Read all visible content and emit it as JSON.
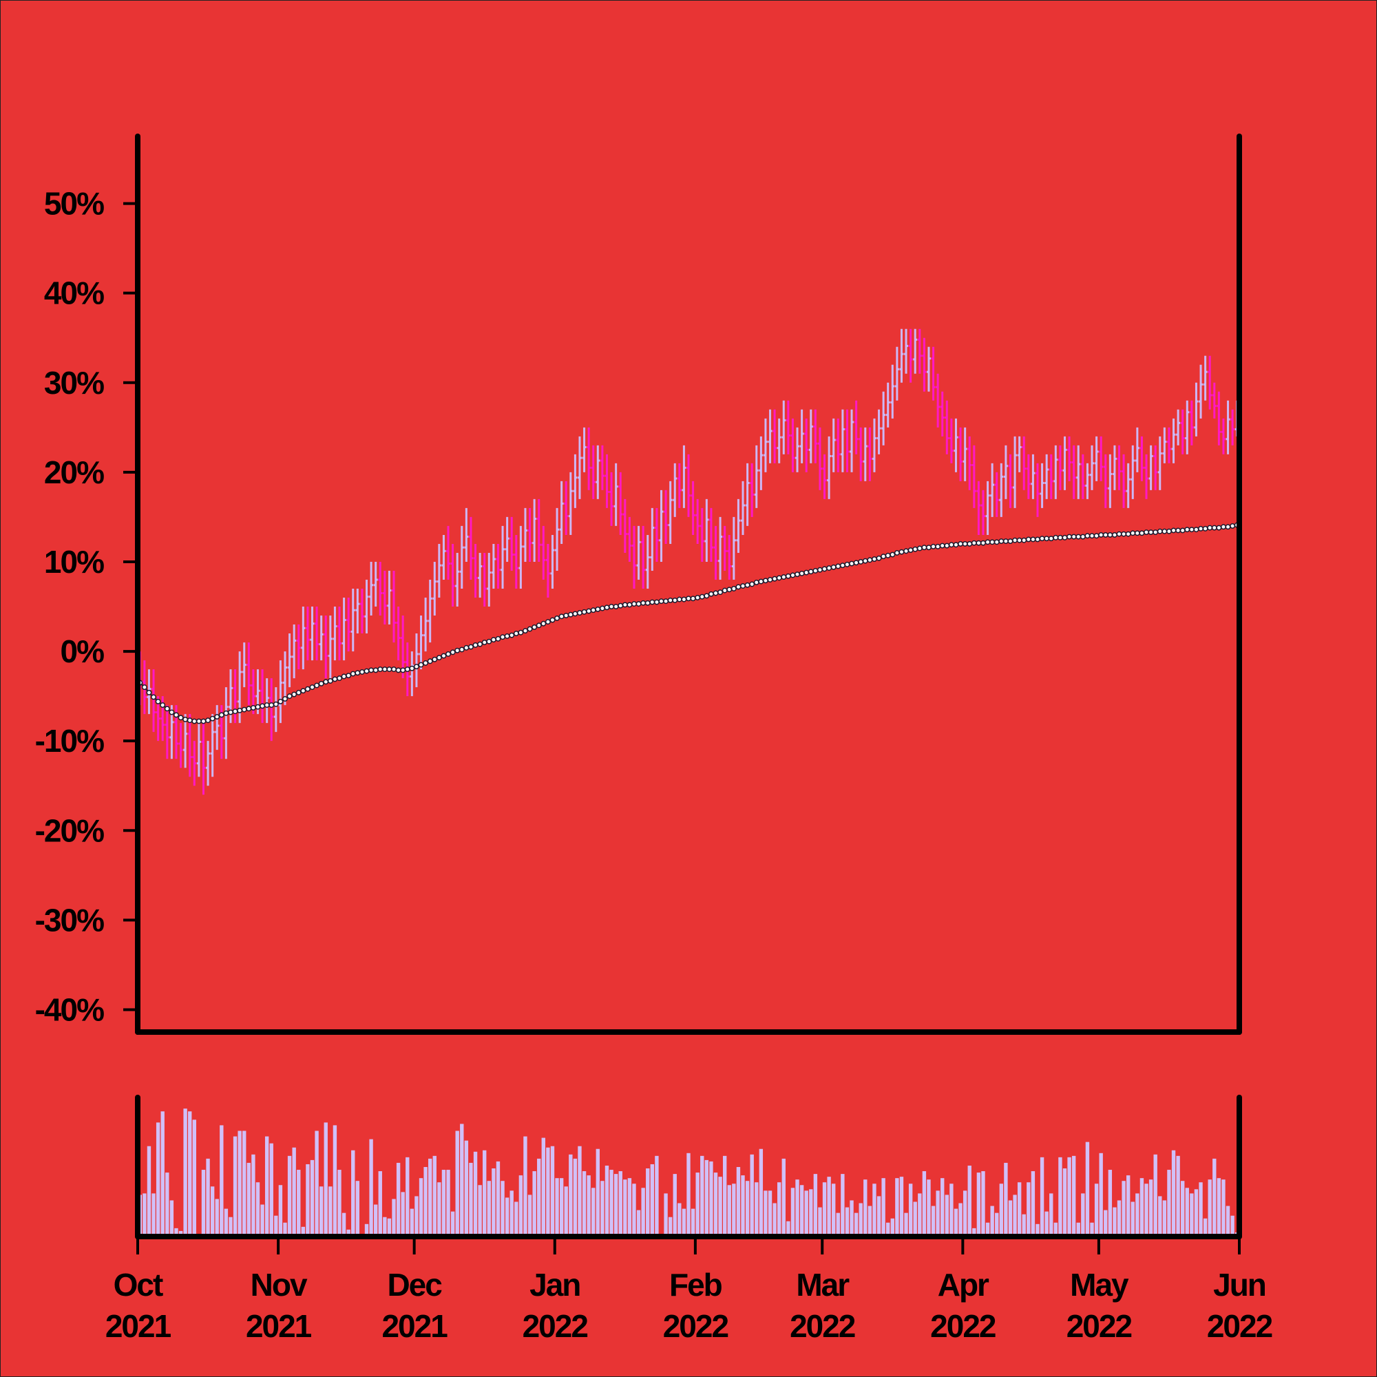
{
  "chart_data": {
    "type": "ohlc",
    "background": "#e83434",
    "up_color": "#cdb8f5",
    "down_color": "#ff19c4",
    "xlim": [
      0,
      243
    ],
    "xticks": [
      {
        "value": 0,
        "label": [
          "Oct",
          "2021"
        ]
      },
      {
        "value": 31,
        "label": [
          "Nov",
          "2021"
        ]
      },
      {
        "value": 61,
        "label": [
          "Dec",
          "2021"
        ]
      },
      {
        "value": 92,
        "label": [
          "Jan",
          "2022"
        ]
      },
      {
        "value": 123,
        "label": [
          "Feb",
          "2022"
        ]
      },
      {
        "value": 151,
        "label": [
          "Mar",
          "2022"
        ]
      },
      {
        "value": 182,
        "label": [
          "Apr",
          "2022"
        ]
      },
      {
        "value": 212,
        "label": [
          "May",
          "2022"
        ]
      },
      {
        "value": 243,
        "label": [
          "Jun",
          "2022"
        ]
      }
    ],
    "ylim": [
      -42.5,
      57.5
    ],
    "yticks": [
      {
        "value": -40,
        "label": "-40%"
      },
      {
        "value": -30,
        "label": "-30%"
      },
      {
        "value": -20,
        "label": "-20%"
      },
      {
        "value": -10,
        "label": "-10%"
      },
      {
        "value": 0,
        "label": "0%"
      },
      {
        "value": 10,
        "label": "10%"
      },
      {
        "value": 20,
        "label": "20%"
      },
      {
        "value": 30,
        "label": "30%"
      },
      {
        "value": 40,
        "label": "40%"
      },
      {
        "value": 50,
        "label": "50%"
      }
    ],
    "close": [
      -3.4,
      -5.1,
      -4.2,
      -6.8,
      -7.5,
      -8.2,
      -9.6,
      -7.9,
      -10.3,
      -11.0,
      -9.2,
      -11.8,
      -12.5,
      -10.1,
      -13.0,
      -11.4,
      -9.0,
      -8.3,
      -9.7,
      -6.2,
      -4.1,
      -5.6,
      -2.3,
      -1.5,
      -3.8,
      -5.0,
      -4.4,
      -6.1,
      -5.2,
      -7.3,
      -6.0,
      -3.5,
      -1.8,
      -0.6,
      1.2,
      0.4,
      2.6,
      1.3,
      3.1,
      0.8,
      1.9,
      -0.5,
      1.4,
      2.8,
      0.9,
      3.5,
      2.2,
      4.6,
      5.3,
      3.9,
      6.1,
      7.4,
      8.0,
      6.5,
      5.1,
      6.8,
      3.2,
      1.5,
      -1.2,
      -2.8,
      -1.6,
      -0.3,
      1.8,
      3.4,
      5.9,
      7.8,
      9.6,
      11.2,
      9.8,
      7.3,
      8.9,
      11.6,
      12.8,
      10.4,
      8.2,
      9.5,
      7.0,
      8.8,
      10.3,
      9.1,
      11.4,
      12.6,
      10.8,
      9.3,
      11.7,
      13.5,
      12.1,
      14.8,
      11.9,
      10.2,
      8.7,
      11.3,
      13.6,
      16.5,
      15.1,
      17.9,
      19.4,
      21.6,
      22.8,
      20.5,
      18.9,
      21.3,
      19.6,
      17.8,
      16.2,
      18.4,
      15.3,
      13.1,
      11.8,
      9.6,
      12.2,
      9.1,
      10.5,
      13.8,
      12.4,
      15.6,
      14.1,
      16.9,
      19.3,
      18.0,
      20.5,
      17.4,
      15.2,
      14.0,
      12.3,
      14.7,
      11.6,
      10.1,
      12.8,
      11.2,
      9.5,
      12.4,
      14.6,
      16.3,
      18.8,
      17.5,
      20.2,
      21.9,
      23.4,
      24.6,
      22.7,
      23.9,
      25.8,
      24.1,
      21.6,
      22.9,
      24.3,
      22.5,
      25.1,
      23.2,
      20.4,
      19.1,
      21.8,
      23.6,
      22.0,
      24.8,
      22.3,
      25.6,
      23.7,
      21.2,
      22.9,
      21.5,
      23.8,
      24.9,
      26.4,
      27.8,
      29.6,
      31.5,
      33.2,
      34.1,
      32.6,
      34.8,
      33.0,
      31.2,
      32.7,
      29.5,
      27.3,
      26.1,
      23.8,
      22.4,
      23.9,
      21.2,
      22.6,
      20.8,
      17.9,
      16.3,
      15.1,
      17.4,
      18.6,
      16.9,
      19.5,
      20.7,
      18.3,
      21.9,
      22.8,
      20.4,
      18.7,
      19.9,
      17.6,
      18.8,
      20.3,
      19.0,
      21.4,
      20.2,
      22.5,
      21.1,
      19.4,
      20.9,
      18.5,
      19.7,
      21.0,
      22.3,
      20.6,
      18.2,
      19.8,
      21.5,
      20.1,
      17.9,
      19.2,
      21.3,
      22.7,
      20.5,
      19.3,
      21.8,
      20.0,
      22.1,
      23.4,
      22.6,
      24.2,
      25.5,
      23.8,
      26.7,
      25.0,
      27.9,
      29.8,
      31.2,
      28.6,
      27.4,
      24.5,
      23.7,
      25.9,
      24.8,
      26.3
    ],
    "open": [
      -1.5,
      -3.4,
      -5.1,
      -4.2,
      -6.8,
      -7.5,
      -8.2,
      -9.6,
      -7.9,
      -10.3,
      -11.0,
      -9.2,
      -11.8,
      -12.5,
      -10.1,
      -13.0,
      -11.4,
      -9.0,
      -8.3,
      -9.7,
      -6.2,
      -4.1,
      -5.6,
      -2.3,
      -1.5,
      -3.8,
      -5.0,
      -4.4,
      -6.1,
      -5.2,
      -7.3,
      -6.0,
      -3.5,
      -1.8,
      -0.6,
      1.2,
      0.4,
      2.6,
      1.3,
      3.1,
      0.8,
      1.9,
      -0.5,
      1.4,
      2.8,
      0.9,
      3.5,
      2.2,
      4.6,
      5.3,
      3.9,
      6.1,
      7.4,
      8.0,
      6.5,
      5.1,
      6.8,
      3.2,
      1.5,
      -1.2,
      -2.8,
      -1.6,
      -0.3,
      1.8,
      3.4,
      5.9,
      7.8,
      9.6,
      11.2,
      9.8,
      7.3,
      8.9,
      11.6,
      12.8,
      10.4,
      8.2,
      9.5,
      7.0,
      8.8,
      10.3,
      9.1,
      11.4,
      12.6,
      10.8,
      9.3,
      11.7,
      13.5,
      12.1,
      14.8,
      11.9,
      10.2,
      8.7,
      11.3,
      13.6,
      16.5,
      15.1,
      17.9,
      19.4,
      21.6,
      22.8,
      20.5,
      18.9,
      21.3,
      19.6,
      17.8,
      16.2,
      18.4,
      15.3,
      13.1,
      11.8,
      9.6,
      12.2,
      9.1,
      10.5,
      13.8,
      12.4,
      15.6,
      14.1,
      16.9,
      19.3,
      18.0,
      20.5,
      17.4,
      15.2,
      14.0,
      12.3,
      14.7,
      11.6,
      10.1,
      12.8,
      11.2,
      9.5,
      12.4,
      14.6,
      16.3,
      18.8,
      17.5,
      20.2,
      21.9,
      23.4,
      24.6,
      22.7,
      23.9,
      25.8,
      24.1,
      21.6,
      22.9,
      24.3,
      22.5,
      25.1,
      23.2,
      20.4,
      19.1,
      21.8,
      23.6,
      22.0,
      24.8,
      22.3,
      25.6,
      23.7,
      21.2,
      22.9,
      21.5,
      23.8,
      24.9,
      26.4,
      27.8,
      29.6,
      31.5,
      33.2,
      34.1,
      32.6,
      34.8,
      33.0,
      31.2,
      32.7,
      29.5,
      27.3,
      26.1,
      23.8,
      22.4,
      23.9,
      21.2,
      22.6,
      20.8,
      17.9,
      16.3,
      15.1,
      17.4,
      18.6,
      16.9,
      19.5,
      20.7,
      18.3,
      21.9,
      22.8,
      20.4,
      18.7,
      19.9,
      17.6,
      18.8,
      20.3,
      19.0,
      21.4,
      20.2,
      22.5,
      21.1,
      19.4,
      20.9,
      18.5,
      19.7,
      21.0,
      22.3,
      20.6,
      18.2,
      19.8,
      21.5,
      20.1,
      17.9,
      19.2,
      21.3,
      22.7,
      20.5,
      19.3,
      21.8,
      20.0,
      22.1,
      23.4,
      22.6,
      24.2,
      25.5,
      23.8,
      26.7,
      25.0,
      27.9,
      29.8,
      31.2,
      28.6,
      27.4,
      24.5,
      23.7,
      25.9,
      24.8
    ],
    "high": [
      0,
      -1,
      -2,
      -2,
      -5,
      -5,
      -6,
      -6,
      -6,
      -8,
      -7,
      -7,
      -10,
      -8,
      -8,
      -10,
      -7,
      -6,
      -6,
      -4,
      -2,
      -2,
      0,
      1,
      1,
      -2,
      -2,
      -2,
      -3,
      -3,
      -4,
      -1,
      0,
      2,
      3,
      3,
      5,
      5,
      5,
      5,
      4,
      4,
      4,
      5,
      5,
      6,
      6,
      7,
      7,
      7,
      8,
      10,
      10,
      10,
      9,
      9,
      9,
      5,
      4,
      1,
      0,
      2,
      4,
      6,
      8,
      10,
      12,
      13,
      14,
      12,
      11,
      14,
      16,
      15,
      12,
      11,
      11,
      11,
      12,
      12,
      14,
      15,
      15,
      13,
      14,
      16,
      16,
      17,
      17,
      14,
      12,
      13,
      16,
      19,
      19,
      20,
      22,
      24,
      25,
      25,
      23,
      23,
      23,
      22,
      20,
      21,
      20,
      17,
      15,
      14,
      14,
      14,
      13,
      16,
      16,
      18,
      18,
      19,
      21,
      21,
      23,
      22,
      19,
      17,
      16,
      17,
      16,
      14,
      15,
      14,
      13,
      15,
      17,
      19,
      21,
      21,
      23,
      24,
      26,
      27,
      27,
      26,
      28,
      28,
      26,
      25,
      27,
      26,
      27,
      27,
      25,
      22,
      24,
      26,
      26,
      27,
      27,
      27,
      28,
      25,
      25,
      25,
      26,
      27,
      29,
      30,
      32,
      34,
      36,
      36,
      36,
      36,
      36,
      35,
      34,
      34,
      31,
      29,
      28,
      26,
      26,
      25,
      25,
      24,
      23,
      19,
      18,
      19,
      21,
      20,
      21,
      23,
      22,
      24,
      24,
      24,
      22,
      22,
      21,
      21,
      22,
      22,
      23,
      23,
      24,
      24,
      23,
      23,
      22,
      21,
      23,
      24,
      24,
      22,
      22,
      23,
      23,
      22,
      21,
      23,
      25,
      24,
      22,
      23,
      23,
      24,
      25,
      25,
      26,
      27,
      27,
      28,
      28,
      30,
      32,
      33,
      33,
      30,
      29,
      26,
      28,
      27,
      28
    ],
    "low": [
      -6,
      -7,
      -7,
      -9,
      -10,
      -10,
      -12,
      -12,
      -12,
      -13,
      -13,
      -14,
      -15,
      -14,
      -16,
      -15,
      -14,
      -11,
      -12,
      -12,
      -8,
      -8,
      -8,
      -4,
      -6,
      -7,
      -7,
      -8,
      -8,
      -10,
      -9,
      -8,
      -6,
      -4,
      -3,
      -2,
      -2,
      -1,
      -1,
      -1,
      -1,
      -3,
      -3,
      -1,
      -1,
      -1,
      0,
      0,
      2,
      2,
      2,
      4,
      5,
      4,
      3,
      3,
      1,
      -1,
      -3,
      -5,
      -5,
      -4,
      -2,
      0,
      1,
      4,
      6,
      8,
      8,
      5,
      5,
      7,
      10,
      8,
      6,
      6,
      5,
      5,
      7,
      7,
      7,
      10,
      9,
      7,
      7,
      10,
      10,
      10,
      10,
      8,
      6,
      7,
      9,
      12,
      13,
      13,
      16,
      17,
      20,
      18,
      17,
      17,
      18,
      16,
      14,
      14,
      13,
      11,
      10,
      7,
      8,
      7,
      7,
      9,
      10,
      10,
      12,
      12,
      15,
      16,
      16,
      15,
      13,
      12,
      10,
      10,
      10,
      8,
      8,
      9,
      8,
      8,
      11,
      13,
      14,
      15,
      16,
      18,
      20,
      21,
      21,
      21,
      22,
      22,
      20,
      20,
      21,
      20,
      21,
      21,
      18,
      17,
      17,
      20,
      20,
      20,
      20,
      20,
      22,
      19,
      19,
      19,
      20,
      22,
      23,
      25,
      26,
      28,
      30,
      31,
      30,
      31,
      31,
      29,
      29,
      28,
      25,
      24,
      22,
      21,
      20,
      19,
      19,
      18,
      16,
      13,
      13,
      13,
      15,
      15,
      15,
      17,
      16,
      16,
      20,
      18,
      17,
      17,
      15,
      16,
      17,
      17,
      17,
      18,
      18,
      19,
      17,
      17,
      17,
      17,
      18,
      19,
      19,
      16,
      16,
      18,
      18,
      16,
      16,
      17,
      20,
      19,
      17,
      18,
      18,
      18,
      21,
      21,
      21,
      23,
      22,
      22,
      23,
      24,
      26,
      28,
      27,
      26,
      23,
      22,
      22,
      23,
      24
    ],
    "moving_average": {
      "color": "#ffffff",
      "values": [
        -3.5,
        -4.0,
        -4.6,
        -5.1,
        -5.6,
        -6.0,
        -6.4,
        -6.8,
        -7.1,
        -7.4,
        -7.6,
        -7.7,
        -7.8,
        -7.8,
        -7.8,
        -7.7,
        -7.5,
        -7.3,
        -7.1,
        -6.9,
        -6.8,
        -6.7,
        -6.6,
        -6.5,
        -6.4,
        -6.3,
        -6.2,
        -6.1,
        -6.0,
        -6.0,
        -5.9,
        -5.6,
        -5.3,
        -5.0,
        -4.8,
        -4.6,
        -4.4,
        -4.2,
        -4.0,
        -3.8,
        -3.6,
        -3.4,
        -3.3,
        -3.1,
        -3.0,
        -2.8,
        -2.7,
        -2.5,
        -2.4,
        -2.3,
        -2.2,
        -2.1,
        -2.1,
        -2.0,
        -2.0,
        -2.0,
        -2.0,
        -2.1,
        -2.1,
        -2.0,
        -1.9,
        -1.7,
        -1.5,
        -1.3,
        -1.1,
        -0.9,
        -0.7,
        -0.5,
        -0.3,
        -0.1,
        0.1,
        0.2,
        0.4,
        0.5,
        0.7,
        0.8,
        1.0,
        1.1,
        1.3,
        1.4,
        1.6,
        1.7,
        1.8,
        2.0,
        2.1,
        2.3,
        2.5,
        2.7,
        2.9,
        3.1,
        3.3,
        3.5,
        3.7,
        3.9,
        4.0,
        4.1,
        4.2,
        4.3,
        4.4,
        4.5,
        4.6,
        4.7,
        4.8,
        4.9,
        5.0,
        5.0,
        5.1,
        5.2,
        5.2,
        5.3,
        5.3,
        5.4,
        5.4,
        5.5,
        5.5,
        5.6,
        5.6,
        5.7,
        5.7,
        5.8,
        5.8,
        5.9,
        5.9,
        6.0,
        6.1,
        6.2,
        6.4,
        6.5,
        6.6,
        6.8,
        6.9,
        7.0,
        7.2,
        7.3,
        7.4,
        7.5,
        7.7,
        7.8,
        7.9,
        8.0,
        8.1,
        8.2,
        8.3,
        8.4,
        8.5,
        8.6,
        8.7,
        8.8,
        8.9,
        9.0,
        9.1,
        9.2,
        9.3,
        9.4,
        9.5,
        9.6,
        9.7,
        9.8,
        9.9,
        10.0,
        10.1,
        10.2,
        10.3,
        10.4,
        10.6,
        10.7,
        10.8,
        11.0,
        11.1,
        11.2,
        11.3,
        11.4,
        11.5,
        11.6,
        11.6,
        11.7,
        11.7,
        11.8,
        11.8,
        11.9,
        11.9,
        12.0,
        12.0,
        12.0,
        12.1,
        12.1,
        12.1,
        12.2,
        12.2,
        12.2,
        12.3,
        12.3,
        12.3,
        12.4,
        12.4,
        12.4,
        12.5,
        12.5,
        12.5,
        12.6,
        12.6,
        12.6,
        12.7,
        12.7,
        12.7,
        12.8,
        12.8,
        12.8,
        12.8,
        12.9,
        12.9,
        12.9,
        13.0,
        13.0,
        13.0,
        13.0,
        13.1,
        13.1,
        13.1,
        13.2,
        13.2,
        13.2,
        13.3,
        13.3,
        13.3,
        13.4,
        13.4,
        13.4,
        13.5,
        13.5,
        13.5,
        13.6,
        13.6,
        13.6,
        13.7,
        13.7,
        13.8,
        13.8,
        13.8,
        13.9,
        13.9,
        14.0,
        14.1
      ]
    },
    "volume": {
      "color": "#d0c0f8",
      "ylim": [
        0,
        100
      ],
      "values": [
        30,
        31,
        65,
        31,
        82,
        90,
        46,
        26,
        6,
        4,
        92,
        90,
        84,
        0,
        48,
        56,
        36,
        27,
        80,
        20,
        14,
        72,
        76,
        76,
        53,
        59,
        39,
        23,
        72,
        67,
        15,
        37,
        10,
        58,
        64,
        48,
        7,
        52,
        55,
        76,
        36,
        82,
        36,
        80,
        48,
        17,
        5,
        62,
        40,
        0,
        9,
        70,
        23,
        47,
        14,
        13,
        27,
        53,
        32,
        57,
        20,
        29,
        42,
        50,
        56,
        58,
        39,
        48,
        48,
        18,
        76,
        81,
        69,
        53,
        61,
        37,
        62,
        40,
        49,
        54,
        40,
        28,
        33,
        25,
        44,
        72,
        30,
        47,
        56,
        71,
        64,
        65,
        42,
        42,
        36,
        59,
        56,
        65,
        47,
        44,
        35,
        63,
        40,
        51,
        48,
        45,
        47,
        41,
        42,
        38,
        19,
        35,
        49,
        52,
        58,
        0,
        31,
        14,
        45,
        24,
        20,
        60,
        20,
        46,
        58,
        55,
        54,
        46,
        43,
        58,
        37,
        38,
        50,
        44,
        40,
        59,
        39,
        63,
        33,
        33,
        24,
        39,
        56,
        11,
        35,
        41,
        37,
        33,
        34,
        45,
        21,
        39,
        43,
        38,
        17,
        45,
        21,
        26,
        17,
        24,
        41,
        22,
        38,
        29,
        42,
        10,
        13,
        42,
        43,
        17,
        38,
        25,
        31,
        47,
        41,
        22,
        33,
        42,
        30,
        38,
        20,
        24,
        33,
        51,
        6,
        46,
        47,
        10,
        22,
        17,
        38,
        53,
        26,
        30,
        39,
        16,
        39,
        47,
        9,
        57,
        18,
        31,
        10,
        57,
        49,
        57,
        58,
        10,
        31,
        68,
        10,
        38,
        60,
        19,
        48,
        21,
        26,
        40,
        44,
        25,
        31,
        42,
        38,
        41,
        59,
        29,
        26,
        48,
        62,
        58,
        40,
        35,
        31,
        34,
        39,
        13,
        41,
        56,
        42,
        41,
        22,
        15,
        3
      ]
    }
  }
}
